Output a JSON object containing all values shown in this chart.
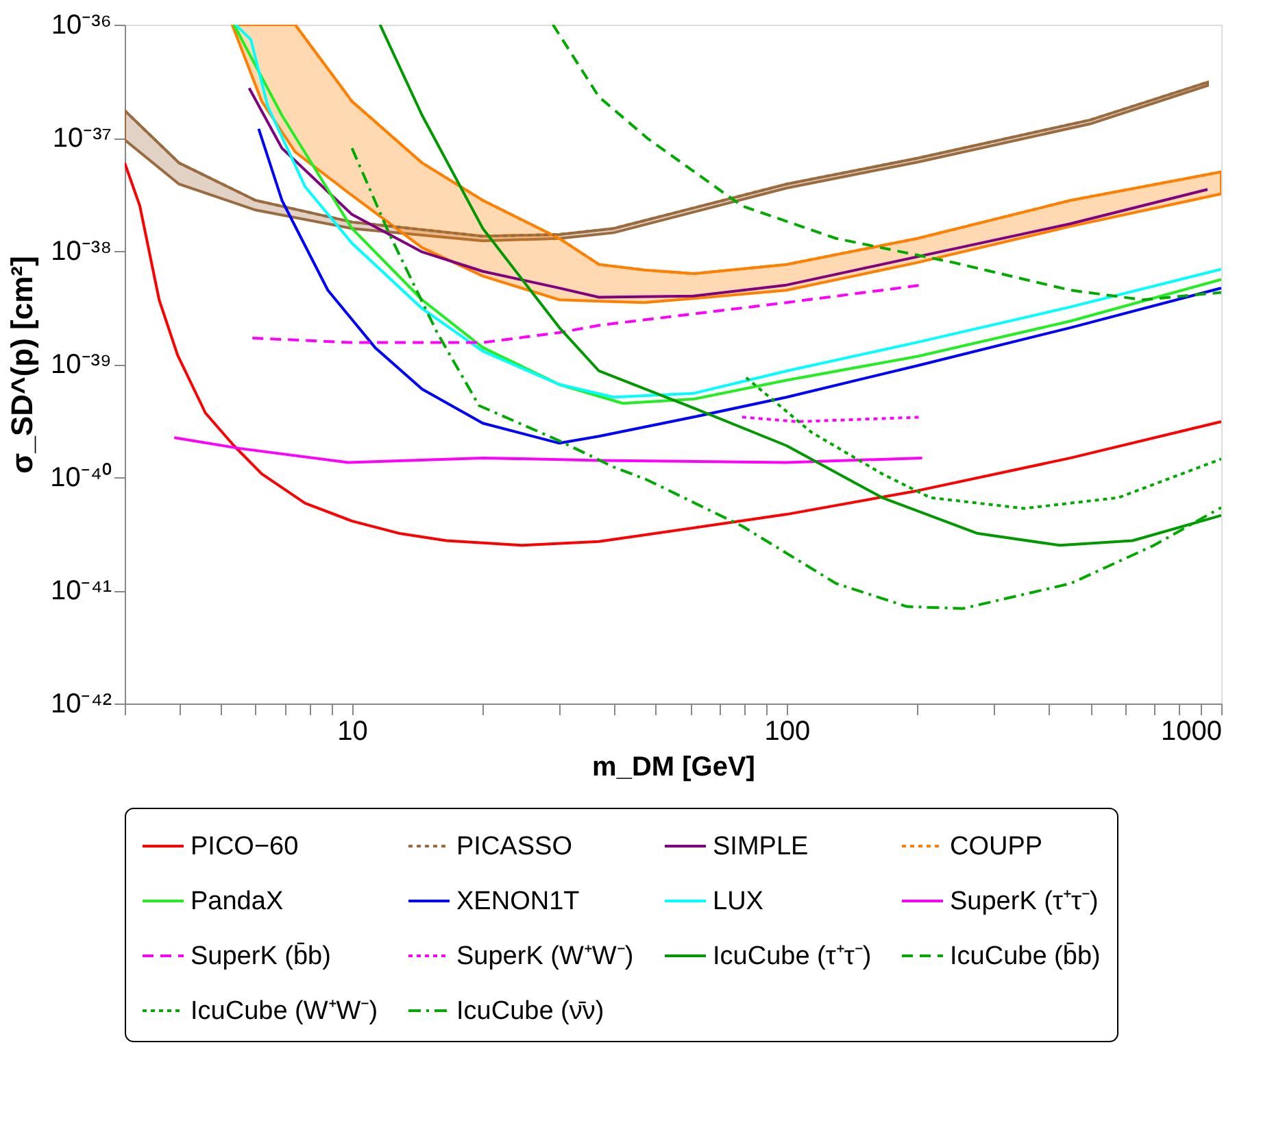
{
  "chart_data": {
    "type": "line",
    "xlabel": "m_DM [GeV]",
    "ylabel": "σ_SD^(p) [cm²]",
    "log": "xy",
    "legend": "bottom",
    "xlim": [
      3,
      1000
    ],
    "ylim": [
      1e-42,
      1e-36
    ],
    "xticks": [
      {
        "value": 3,
        "label": null
      },
      {
        "value": 4,
        "label": null
      },
      {
        "value": 5,
        "label": null
      },
      {
        "value": 6,
        "label": null
      },
      {
        "value": 7,
        "label": null
      },
      {
        "value": 8,
        "label": null
      },
      {
        "value": 9,
        "label": null
      },
      10,
      {
        "value": 20,
        "label": null
      },
      {
        "value": 30,
        "label": null
      },
      {
        "value": 40,
        "label": null
      },
      {
        "value": 50,
        "label": null
      },
      {
        "value": 60,
        "label": null
      },
      {
        "value": 70,
        "label": null
      },
      {
        "value": 80,
        "label": null
      },
      {
        "value": 90,
        "label": null
      },
      100,
      {
        "value": 200,
        "label": null
      },
      {
        "value": 300,
        "label": null
      },
      {
        "value": 400,
        "label": null
      },
      {
        "value": 500,
        "label": null
      },
      {
        "value": 600,
        "label": null
      },
      {
        "value": 700,
        "label": null
      },
      {
        "value": 800,
        "label": null
      },
      {
        "value": 900,
        "label": null
      },
      1000
    ],
    "yticks": [
      {
        "value": 1e-42,
        "label": "10⁻⁴²"
      },
      {
        "value": 1e-41,
        "label": "10⁻⁴¹"
      },
      {
        "value": 1e-40,
        "label": "10⁻⁴⁰"
      },
      {
        "value": 1e-39,
        "label": "10⁻³⁹"
      },
      {
        "value": 1e-38,
        "label": "10⁻³⁸"
      },
      {
        "value": 1e-37,
        "label": "10⁻³⁷"
      },
      {
        "value": 1e-36,
        "label": "10⁻³⁶"
      }
    ],
    "series": [
      {
        "name": "PICO−60",
        "color": "#ff0000",
        "line_style": "solid",
        "x": [
          3.0,
          3.25,
          3.6,
          3.97,
          4.6,
          5.35,
          6.2,
          7.8,
          10,
          12.8,
          16.5,
          24.6,
          37,
          100,
          200,
          450,
          1000
        ],
        "values": [
          6e-38,
          2.5e-38,
          3.7e-39,
          1.2e-39,
          3.7e-40,
          1.9e-40,
          1.07e-40,
          5.9e-41,
          4.1e-41,
          3.2e-41,
          2.75e-41,
          2.5e-41,
          2.7e-41,
          4.7e-41,
          7.6e-41,
          1.48e-40,
          3.1e-40
        ]
      },
      {
        "name": "PICASSO",
        "color": "#9a6b3f",
        "line_style": "dotted",
        "x": [
          3,
          4,
          6,
          10,
          20,
          30,
          40,
          100,
          200,
          500,
          930
        ],
        "values": [
          1.74e-37,
          6e-38,
          2.8e-38,
          1.8e-38,
          1.35e-38,
          1.4e-38,
          1.58e-38,
          3.9e-38,
          6.6e-38,
          1.44e-37,
          3.1e-37
        ],
        "lower": [
          9.6e-38,
          3.9e-38,
          2.3e-38,
          1.58e-38,
          1.23e-38,
          1.29e-38,
          1.45e-38,
          3.6e-38,
          6.1e-38,
          1.33e-37,
          2.9e-37
        ],
        "upper": [
          1.74e-37,
          6e-38,
          2.8e-38,
          1.8e-38,
          1.35e-38,
          1.4e-38,
          1.58e-38,
          3.9e-38,
          6.6e-38,
          1.44e-37,
          3.1e-37
        ]
      },
      {
        "name": "SIMPLE",
        "color": "#800080",
        "line_style": "solid",
        "x": [
          5.8,
          6.9,
          10,
          14.5,
          20,
          30,
          37,
          61,
          100,
          200,
          450,
          930
        ],
        "values": [
          2.75e-37,
          8.1e-38,
          2.1e-38,
          9.8e-39,
          6.6e-39,
          4.7e-39,
          3.9e-39,
          4e-39,
          5e-39,
          8.9e-39,
          1.74e-38,
          3.5e-38
        ]
      },
      {
        "name": "COUPP",
        "color": "#ff8000",
        "line_style": "dotted",
        "x": [
          5.3,
          6.2,
          7.4,
          10,
          14.5,
          20,
          30,
          37,
          47,
          61,
          100,
          200,
          450,
          1000
        ],
        "values": [
          1e-36,
          1e-36,
          1e-36,
          2.1e-37,
          6e-38,
          2.8e-38,
          1.29e-38,
          7.6e-39,
          6.8e-39,
          6.3e-39,
          7.6e-39,
          1.29e-38,
          2.8e-38,
          5e-38
        ],
        "lower": [
          1e-36,
          2.1e-37,
          7.5e-38,
          3.1e-38,
          1.07e-38,
          6e-39,
          3.7e-39,
          3.6e-39,
          3.5e-39,
          3.8e-39,
          4.5e-39,
          7.9e-39,
          1.65e-38,
          3.2e-38
        ],
        "upper": [
          1e-36,
          1e-36,
          1e-36,
          2.1e-37,
          6e-38,
          2.8e-38,
          1.29e-38,
          7.6e-39,
          6.8e-39,
          6.3e-39,
          7.6e-39,
          1.29e-38,
          2.8e-38,
          5e-38
        ]
      },
      {
        "name": "PandaX",
        "color": "#22ee22",
        "line_style": "solid",
        "x": [
          5.35,
          6.9,
          10,
          14.5,
          20,
          30,
          42,
          61,
          100,
          200,
          450,
          1000
        ],
        "values": [
          1e-36,
          1.58e-37,
          1.58e-38,
          3.7e-39,
          1.4e-39,
          6.6e-40,
          4.5e-40,
          4.9e-40,
          7.2e-40,
          1.17e-39,
          2.4e-39,
          5.6e-39
        ]
      },
      {
        "name": "XENON1T",
        "color": "#0000ff",
        "line_style": "solid",
        "x": [
          6.1,
          6.9,
          8.8,
          11.3,
          14.5,
          20,
          30,
          37,
          61,
          100,
          200,
          450,
          1000
        ],
        "values": [
          1.2e-37,
          2.8e-38,
          4.5e-39,
          1.4e-39,
          6e-40,
          3e-40,
          2e-40,
          2.3e-40,
          3.4e-40,
          5.1e-40,
          9.7e-40,
          2.1e-39,
          4.7e-39
        ]
      },
      {
        "name": "LUX",
        "color": "#00ffff",
        "line_style": "solid",
        "x": [
          5.4,
          5.85,
          6.4,
          7.8,
          10,
          14.5,
          20,
          30,
          40,
          61,
          100,
          200,
          450,
          1000
        ],
        "values": [
          1e-36,
          7.4e-37,
          1.9e-37,
          3.7e-38,
          1.17e-38,
          3.1e-39,
          1.3e-39,
          6.6e-40,
          5.1e-40,
          5.5e-40,
          8.7e-40,
          1.56e-39,
          3.2e-39,
          6.9e-39
        ]
      },
      {
        "name": "SuperK (τ⁺τ⁻)",
        "color": "#ff00ff",
        "line_style": "solid",
        "x": [
          3.9,
          5.5,
          9.8,
          20,
          37,
          100,
          205
        ],
        "values": [
          2.24e-40,
          1.8e-40,
          1.35e-40,
          1.48e-40,
          1.41e-40,
          1.35e-40,
          1.48e-40
        ]
      },
      {
        "name": "SuperK (b̄b)",
        "color": "#ff00ff",
        "line_style": "dashed",
        "x": [
          5.9,
          10,
          20,
          30,
          37,
          100,
          205
        ],
        "values": [
          1.7e-39,
          1.55e-39,
          1.55e-39,
          1.9e-39,
          2.2e-39,
          3.5e-39,
          5e-39
        ]
      },
      {
        "name": "SuperK (W⁺W⁻)",
        "color": "#ff00ff",
        "line_style": "dotted",
        "x": [
          79,
          106,
          205
        ],
        "values": [
          3.4e-40,
          3.1e-40,
          3.4e-40
        ]
      },
      {
        "name": "IcuCube (τ⁺τ⁻)",
        "color": "#009900",
        "line_style": "solid",
        "x": [
          11.6,
          14.5,
          20,
          30,
          37,
          61,
          100,
          166,
          274,
          425,
          625,
          1000
        ],
        "values": [
          1e-36,
          1.58e-37,
          1.58e-38,
          2.1e-39,
          8.7e-40,
          4.1e-40,
          1.9e-40,
          6.6e-41,
          3.2e-41,
          2.5e-41,
          2.75e-41,
          4.6e-41
        ]
      },
      {
        "name": "IcuCube (b̄b)",
        "color": "#00aa00",
        "line_style": "dashed",
        "x": [
          29,
          37,
          48,
          79,
          130,
          242,
          450,
          660,
          1000
        ],
        "values": [
          1e-36,
          2.3e-37,
          9.8e-38,
          2.5e-38,
          1.29e-38,
          7.9e-39,
          4.5e-39,
          3.7e-39,
          4.3e-39
        ]
      },
      {
        "name": "IcuCube (W⁺W⁻)",
        "color": "#00aa00",
        "line_style": "dotted",
        "x": [
          80.7,
          114,
          166,
          214,
          352,
          580,
          1000
        ],
        "values": [
          7.6e-40,
          2.5e-40,
          1.07e-40,
          6.6e-41,
          5.3e-41,
          6.6e-41,
          1.45e-40
        ]
      },
      {
        "name": "IcuCube (ν̄ν)",
        "color": "#00aa00",
        "line_style": "dashdot",
        "x": [
          10,
          12.2,
          15.7,
          19.6,
          30,
          40,
          47.7,
          79,
          130,
          189,
          254,
          450,
          700,
          1000
        ],
        "values": [
          8.1e-38,
          1.4e-38,
          1.9e-39,
          4.3e-40,
          2.1e-40,
          1.23e-40,
          9.5e-41,
          3.7e-41,
          1.15e-41,
          7.2e-42,
          6.9e-42,
          1.15e-41,
          2.5e-41,
          5.4e-41
        ]
      }
    ]
  }
}
